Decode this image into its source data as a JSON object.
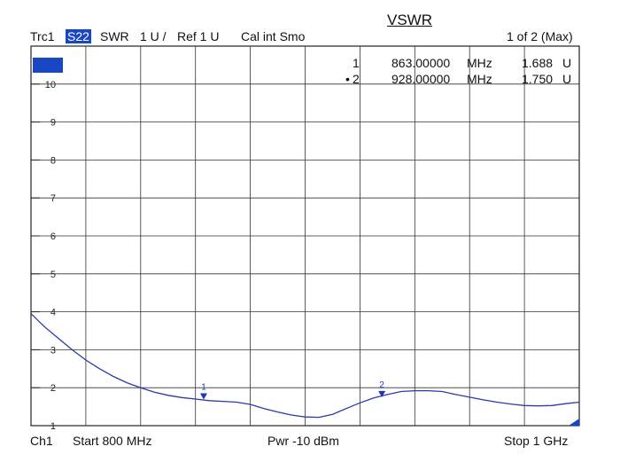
{
  "header": {
    "trace": "Trc1",
    "param": "S22",
    "format": "SWR",
    "scale": "1 U /",
    "ref": "Ref 1 U",
    "cal": "Cal int Smo",
    "title": "VSWR",
    "page": "1 of 2 (Max)"
  },
  "footer": {
    "channel": "Ch1",
    "start": "Start  800 MHz",
    "power": "Pwr  -10 dBm",
    "stop": "Stop  1 GHz"
  },
  "marker_table": [
    {
      "id": "1",
      "active": false,
      "freq": "863.00000",
      "unit": "MHz",
      "value": "1.688",
      "vunit": "U"
    },
    {
      "id": "2",
      "active": true,
      "freq": "928.00000",
      "unit": "MHz",
      "value": "1.750",
      "vunit": "U"
    }
  ],
  "colors": {
    "trace": "#2a3aa8",
    "grid": "#333333",
    "marker": "#1a3ab8",
    "badge": "#1846c4"
  },
  "chart_data": {
    "type": "line",
    "xlim": [
      800,
      1000
    ],
    "ylim": [
      1,
      11
    ],
    "grid": true,
    "yticks": [
      "1",
      "2",
      "3",
      "4",
      "5",
      "6",
      "7",
      "8",
      "9",
      "10"
    ],
    "series": [
      {
        "x": [
          800,
          805,
          810,
          815,
          820,
          825,
          830,
          835,
          840,
          845,
          850,
          855,
          860,
          865,
          870,
          875,
          880,
          885,
          890,
          895,
          900,
          905,
          910,
          915,
          920,
          925,
          930,
          935,
          940,
          945,
          950,
          955,
          960,
          965,
          970,
          975,
          980,
          985,
          990,
          995,
          1000
        ],
        "y": [
          3.95,
          3.6,
          3.3,
          3.0,
          2.73,
          2.5,
          2.3,
          2.13,
          2.0,
          1.88,
          1.8,
          1.74,
          1.7,
          1.66,
          1.64,
          1.62,
          1.56,
          1.45,
          1.36,
          1.28,
          1.23,
          1.22,
          1.3,
          1.45,
          1.6,
          1.73,
          1.82,
          1.9,
          1.92,
          1.92,
          1.9,
          1.82,
          1.75,
          1.68,
          1.62,
          1.57,
          1.53,
          1.52,
          1.53,
          1.58,
          1.62
        ]
      }
    ],
    "markers": [
      {
        "label": "1",
        "x": 863,
        "y": 1.688
      },
      {
        "label": "2",
        "x": 928,
        "y": 1.75
      }
    ]
  }
}
